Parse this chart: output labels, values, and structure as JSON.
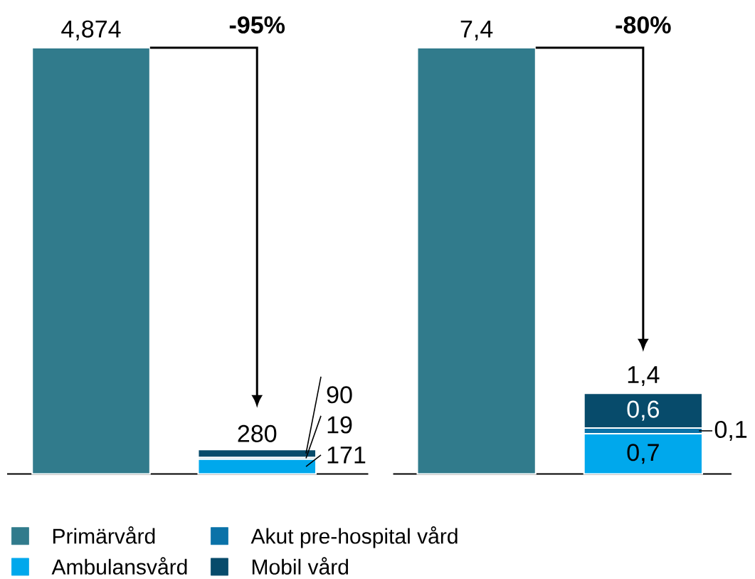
{
  "chart_data": [
    {
      "type": "bar",
      "stacked": true,
      "categories": [
        null,
        null
      ],
      "tick_labels": false,
      "legend": "bottom",
      "annotations": [
        "-95%"
      ],
      "totals": [
        null,
        "280"
      ],
      "series": [
        {
          "name": "Primärvård",
          "color": "#317b8c",
          "values": [
            4874,
            null
          ],
          "value_labels": [
            "4,874",
            null
          ]
        },
        {
          "name": "Ambulansvård",
          "color": "#00a8ec",
          "values": [
            null,
            171
          ],
          "value_labels": [
            null,
            "171"
          ]
        },
        {
          "name": "Akut pre-hospital vård",
          "color": "#0a72a8",
          "values": [
            null,
            19
          ],
          "value_labels": [
            null,
            "19"
          ]
        },
        {
          "name": "Mobil vård",
          "color": "#074b6b",
          "values": [
            null,
            90
          ],
          "value_labels": [
            null,
            "90"
          ]
        }
      ]
    },
    {
      "type": "bar",
      "stacked": true,
      "categories": [
        null,
        null
      ],
      "tick_labels": false,
      "annotations": [
        "-80%"
      ],
      "totals": [
        null,
        "1,4"
      ],
      "series": [
        {
          "color": "#317b8c",
          "values": [
            7.4,
            null
          ],
          "value_labels": [
            "7,4",
            null
          ]
        },
        {
          "color": "#00a8ec",
          "values": [
            null,
            0.7
          ],
          "value_labels": [
            null,
            "0,7"
          ]
        },
        {
          "color": "#0a72a8",
          "values": [
            null,
            0.1
          ],
          "value_labels": [
            null,
            "0,1"
          ]
        },
        {
          "color": "#074b6b",
          "values": [
            null,
            0.6
          ],
          "value_labels": [
            null,
            "0,6"
          ]
        }
      ]
    }
  ]
}
